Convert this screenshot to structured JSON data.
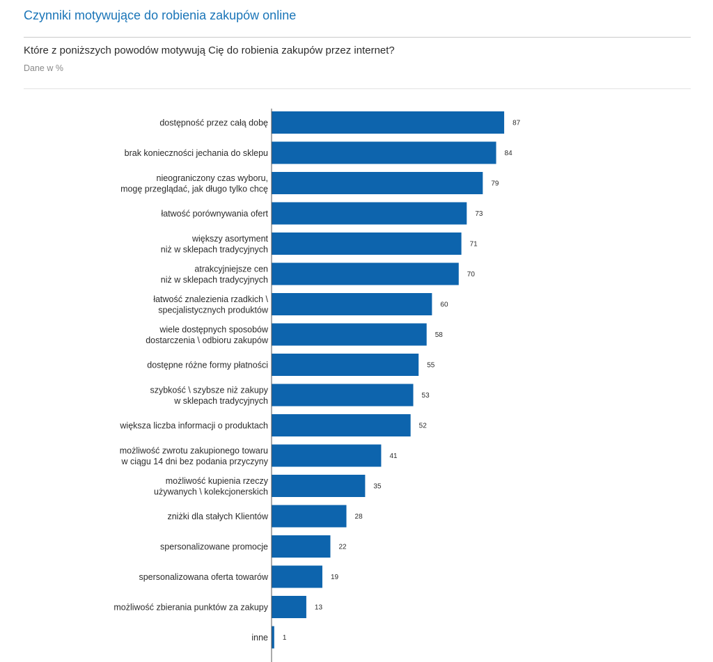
{
  "header": {
    "title": "Czynniki motywujące do robienia zakupów online",
    "question": "Które z poniższych powodów motywują Cię do robienia zakupów przez internet?",
    "unit_note": "Dane w %"
  },
  "colors": {
    "bar": "#0d64ad",
    "title": "#1a75b8",
    "axis": "#555555"
  },
  "chart_data": {
    "type": "bar",
    "orientation": "horizontal",
    "title": "",
    "xlabel": "",
    "ylabel": "",
    "xlim": [
      0,
      100
    ],
    "grid": false,
    "legend": "none",
    "categories": [
      [
        "dostępność przez całą dobę"
      ],
      [
        "brak konieczności jechania do sklepu"
      ],
      [
        "nieograniczony czas wyboru,",
        "mogę przeglądać, jak długo tylko chcę"
      ],
      [
        "łatwość porównywania ofert"
      ],
      [
        "większy asortyment",
        "niż w sklepach tradycyjnych"
      ],
      [
        "atrakcyjniejsze cen",
        "niż w sklepach tradycyjnych"
      ],
      [
        "łatwość znalezienia rzadkich \\",
        "specjalistycznych produktów"
      ],
      [
        "wiele dostępnych sposobów",
        "dostarczenia \\ odbioru zakupów"
      ],
      [
        "dostępne różne formy płatności"
      ],
      [
        "szybkość \\ szybsze niż zakupy",
        "w sklepach tradycyjnych"
      ],
      [
        "większa liczba informacji o produktach"
      ],
      [
        "możliwość zwrotu zakupionego towaru",
        "w ciągu 14 dni bez podania przyczyny"
      ],
      [
        "możliwość kupienia rzeczy",
        "używanych \\ kolekcjonerskich"
      ],
      [
        "zniżki dla stałych Klientów"
      ],
      [
        "spersonalizowane promocje"
      ],
      [
        "spersonalizowana oferta towarów"
      ],
      [
        "możliwość zbierania punktów za zakupy"
      ],
      [
        "inne"
      ]
    ],
    "values": [
      87,
      84,
      79,
      73,
      71,
      70,
      60,
      58,
      55,
      53,
      52,
      41,
      35,
      28,
      22,
      19,
      13,
      1
    ]
  }
}
